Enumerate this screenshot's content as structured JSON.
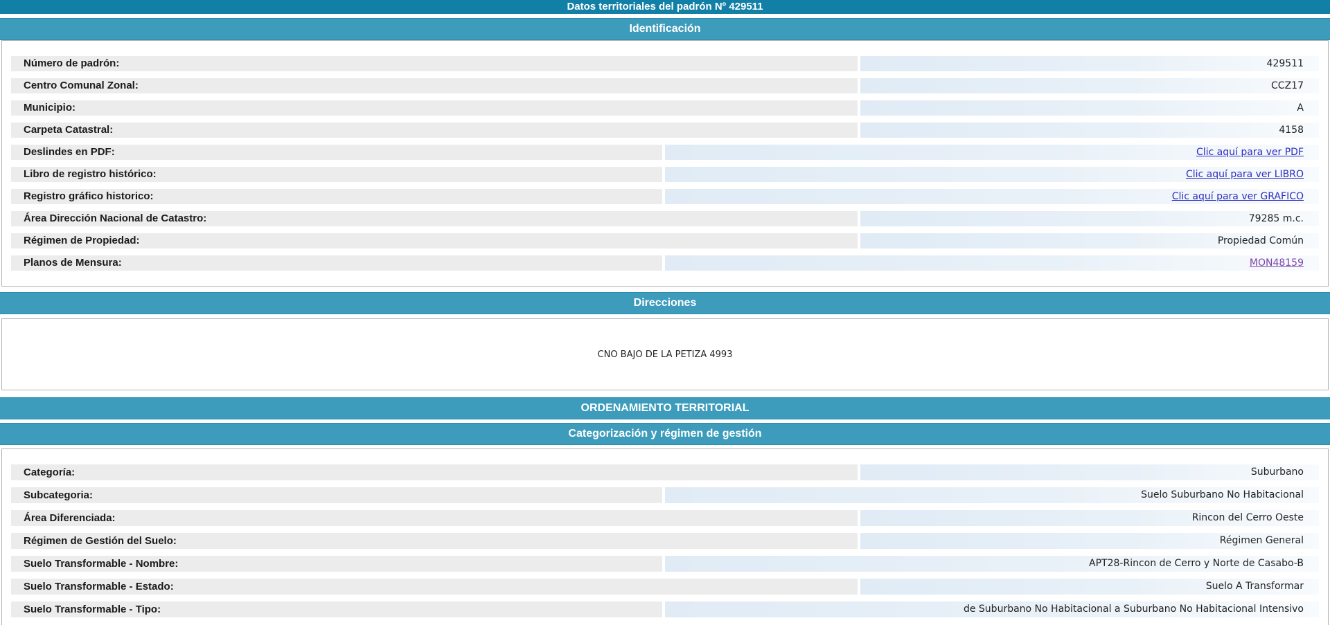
{
  "title_bar": {
    "text": "Datos territoriales del padrón Nº 429511"
  },
  "colors": {
    "header_dark_teal": "#1280a6",
    "header_light_teal": "#3d9cbb",
    "label_band_gray": "#ececec",
    "value_band_blue": "#e9f1f8",
    "link_blue": "#2d2dbe",
    "link_visited_purple": "#7d44a8"
  },
  "identification": {
    "header": "Identificación",
    "rows": [
      {
        "label": "Número de padrón:",
        "value": "429511"
      },
      {
        "label": "Centro Comunal Zonal:",
        "value": "CCZ17"
      },
      {
        "label": "Municipio:",
        "value": "A"
      },
      {
        "label": "Carpeta Catastral:",
        "value": "4158"
      },
      {
        "label": "Deslindes en PDF:",
        "value": "Clic aquí para ver PDF",
        "is_link": true
      },
      {
        "label": "Libro de registro histórico:",
        "value": "Clic aquí para ver LIBRO",
        "is_link": true
      },
      {
        "label": "Registro gráfico historico:",
        "value": "Clic aquí para ver GRAFICO",
        "is_link": true
      },
      {
        "label": "Área Dirección Nacional de Catastro:",
        "value": "79285 m.c."
      },
      {
        "label": "Régimen de Propiedad:",
        "value": "Propiedad Común"
      },
      {
        "label": "Planos de Mensura:",
        "value": "MON48159",
        "is_link": true,
        "visited": true
      }
    ]
  },
  "direcciones": {
    "header": "Direcciones",
    "address": "CNO BAJO DE LA PETIZA 4993"
  },
  "ordenamiento": {
    "header": "ORDENAMIENTO TERRITORIAL"
  },
  "categorizacion": {
    "header": "Categorización y régimen de gestión",
    "rows": [
      {
        "label": "Categoría:",
        "value": "Suburbano"
      },
      {
        "label": "Subcategoria:",
        "value": "Suelo Suburbano No Habitacional"
      },
      {
        "label": "Área Diferenciada:",
        "value": "Rincon del Cerro Oeste"
      },
      {
        "label": "Régimen de Gestión del Suelo:",
        "value": "Régimen General"
      },
      {
        "label": "Suelo Transformable - Nombre:",
        "value": "APT28-Rincon de Cerro y Norte de Casabo-B"
      },
      {
        "label": "Suelo Transformable - Estado:",
        "value": "Suelo A Transformar"
      },
      {
        "label": "Suelo Transformable - Tipo:",
        "value": "de Suburbano No Habitacional a Suburbano No Habitacional Intensivo"
      }
    ]
  }
}
